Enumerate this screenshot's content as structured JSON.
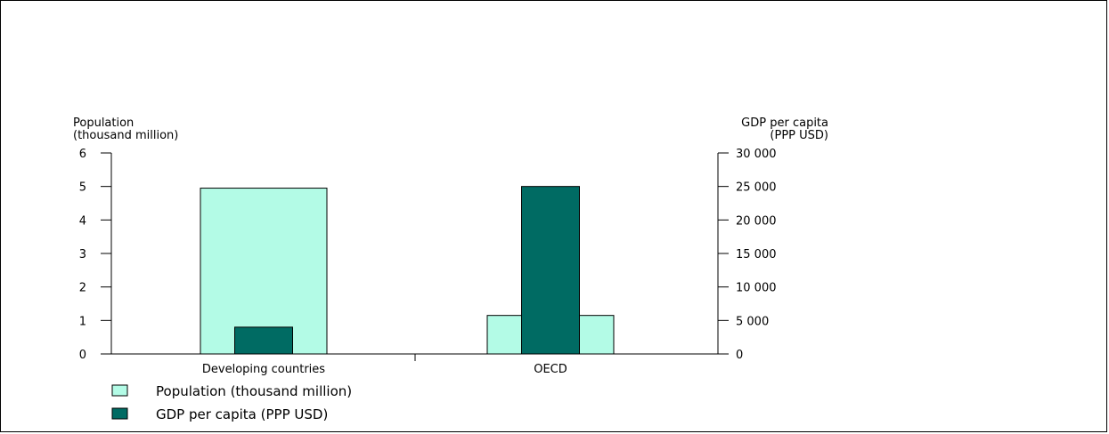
{
  "chart_data": {
    "type": "bar",
    "categories": [
      "Developing countries",
      "OECD"
    ],
    "series": [
      {
        "name": "Population (thousand million)",
        "axis": "left",
        "values": [
          4.95,
          1.15
        ],
        "color": "#b3fbe6"
      },
      {
        "name": "GDP per capita (PPP USD)",
        "axis": "right",
        "values": [
          4000,
          25000
        ],
        "color": "#006b63"
      }
    ],
    "y_left": {
      "label_lines": [
        "Population",
        "(thousand million)"
      ],
      "ylim": [
        0,
        6
      ],
      "ticks": [
        "0",
        "1",
        "2",
        "3",
        "4",
        "5",
        "6"
      ]
    },
    "y_right": {
      "label_lines": [
        "GDP per capita",
        "(PPP USD)"
      ],
      "ylim": [
        0,
        30000
      ],
      "ticks": [
        "0",
        "5 000",
        "10 000",
        "15 000",
        "20 000",
        "25 000",
        "30 000"
      ]
    },
    "legend_position": "bottom-left",
    "grid": false
  }
}
